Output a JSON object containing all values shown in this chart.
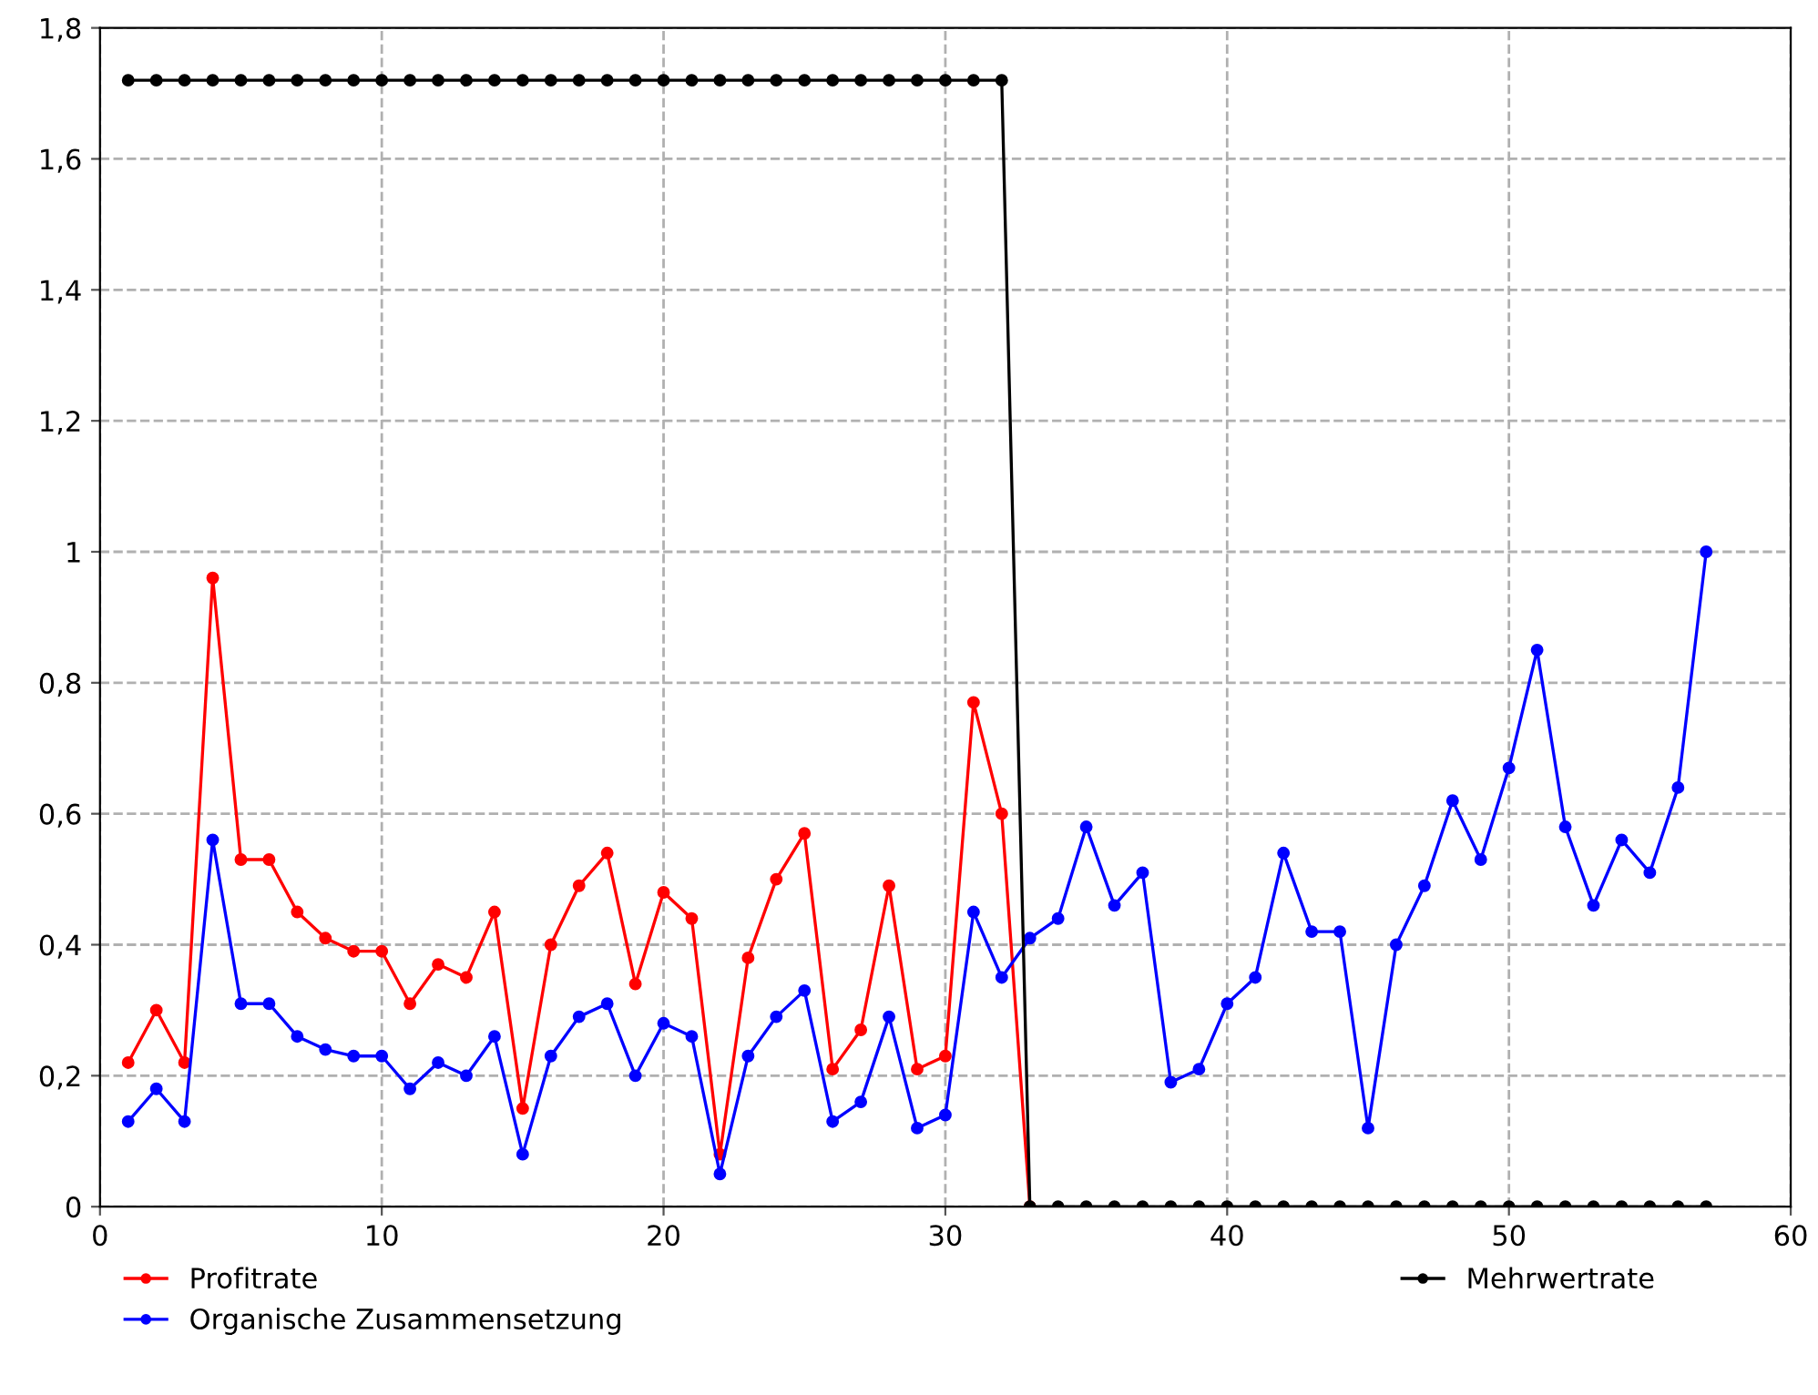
{
  "chart_data": {
    "type": "line",
    "x": [
      1,
      2,
      3,
      4,
      5,
      6,
      7,
      8,
      9,
      10,
      11,
      12,
      13,
      14,
      15,
      16,
      17,
      18,
      19,
      20,
      21,
      22,
      23,
      24,
      25,
      26,
      27,
      28,
      29,
      30,
      31,
      32,
      33,
      34,
      35,
      36,
      37,
      38,
      39,
      40,
      41,
      42,
      43,
      44,
      45,
      46,
      47,
      48,
      49,
      50,
      51,
      52,
      53,
      54,
      55,
      56,
      57
    ],
    "series": [
      {
        "name": "Profitrate",
        "color": "#ff0000",
        "x": [
          1,
          2,
          3,
          4,
          5,
          6,
          7,
          8,
          9,
          10,
          11,
          12,
          13,
          14,
          15,
          16,
          17,
          18,
          19,
          20,
          21,
          22,
          23,
          24,
          25,
          26,
          27,
          28,
          29,
          30,
          31,
          32,
          33
        ],
        "values": [
          0.22,
          0.3,
          0.22,
          0.96,
          0.53,
          0.53,
          0.45,
          0.41,
          0.39,
          0.39,
          0.31,
          0.37,
          0.35,
          0.45,
          0.15,
          0.4,
          0.49,
          0.54,
          0.34,
          0.48,
          0.44,
          0.08,
          0.38,
          0.5,
          0.57,
          0.21,
          0.27,
          0.49,
          0.21,
          0.23,
          0.77,
          0.6,
          0
        ]
      },
      {
        "name": "Organische Zusammensetzung",
        "color": "#0000ff",
        "values": [
          0.13,
          0.18,
          0.13,
          0.56,
          0.31,
          0.31,
          0.26,
          0.24,
          0.23,
          0.23,
          0.18,
          0.22,
          0.2,
          0.26,
          0.08,
          0.23,
          0.29,
          0.31,
          0.2,
          0.28,
          0.26,
          0.05,
          0.23,
          0.29,
          0.33,
          0.13,
          0.16,
          0.29,
          0.12,
          0.14,
          0.45,
          0.35,
          0.41,
          0.44,
          0.58,
          0.46,
          0.51,
          0.19,
          0.21,
          0.31,
          0.35,
          0.54,
          0.42,
          0.42,
          0.12,
          0.4,
          0.49,
          0.62,
          0.53,
          0.67,
          0.85,
          0.58,
          0.46,
          0.56,
          0.51,
          0.64,
          1.0
        ]
      },
      {
        "name": "Mehrwertrate",
        "color": "#000000",
        "values": [
          1.72,
          1.72,
          1.72,
          1.72,
          1.72,
          1.72,
          1.72,
          1.72,
          1.72,
          1.72,
          1.72,
          1.72,
          1.72,
          1.72,
          1.72,
          1.72,
          1.72,
          1.72,
          1.72,
          1.72,
          1.72,
          1.72,
          1.72,
          1.72,
          1.72,
          1.72,
          1.72,
          1.72,
          1.72,
          1.72,
          1.72,
          1.72,
          0,
          0,
          0,
          0,
          0,
          0,
          0,
          0,
          0,
          0,
          0,
          0,
          0,
          0,
          0,
          0,
          0,
          0,
          0,
          0,
          0,
          0,
          0,
          0,
          0
        ]
      }
    ],
    "xlim": [
      0,
      60
    ],
    "xticks": [
      0,
      10,
      20,
      30,
      40,
      50,
      60
    ],
    "ylim": [
      0,
      1.8
    ],
    "yticks": [
      0,
      {
        "value": 0.2,
        "label": "0,2"
      },
      {
        "value": 0.4,
        "label": "0,4"
      },
      {
        "value": 0.6,
        "label": "0,6"
      },
      {
        "value": 0.8,
        "label": "0,8"
      },
      1,
      {
        "value": 1.2,
        "label": "1,2"
      },
      {
        "value": 1.4,
        "label": "1,4"
      },
      {
        "value": 1.6,
        "label": "1,6"
      },
      {
        "value": 1.8,
        "label": "1,8"
      }
    ],
    "grid": true,
    "legend": "bottom",
    "marker": "circle",
    "line_style": "solid"
  }
}
